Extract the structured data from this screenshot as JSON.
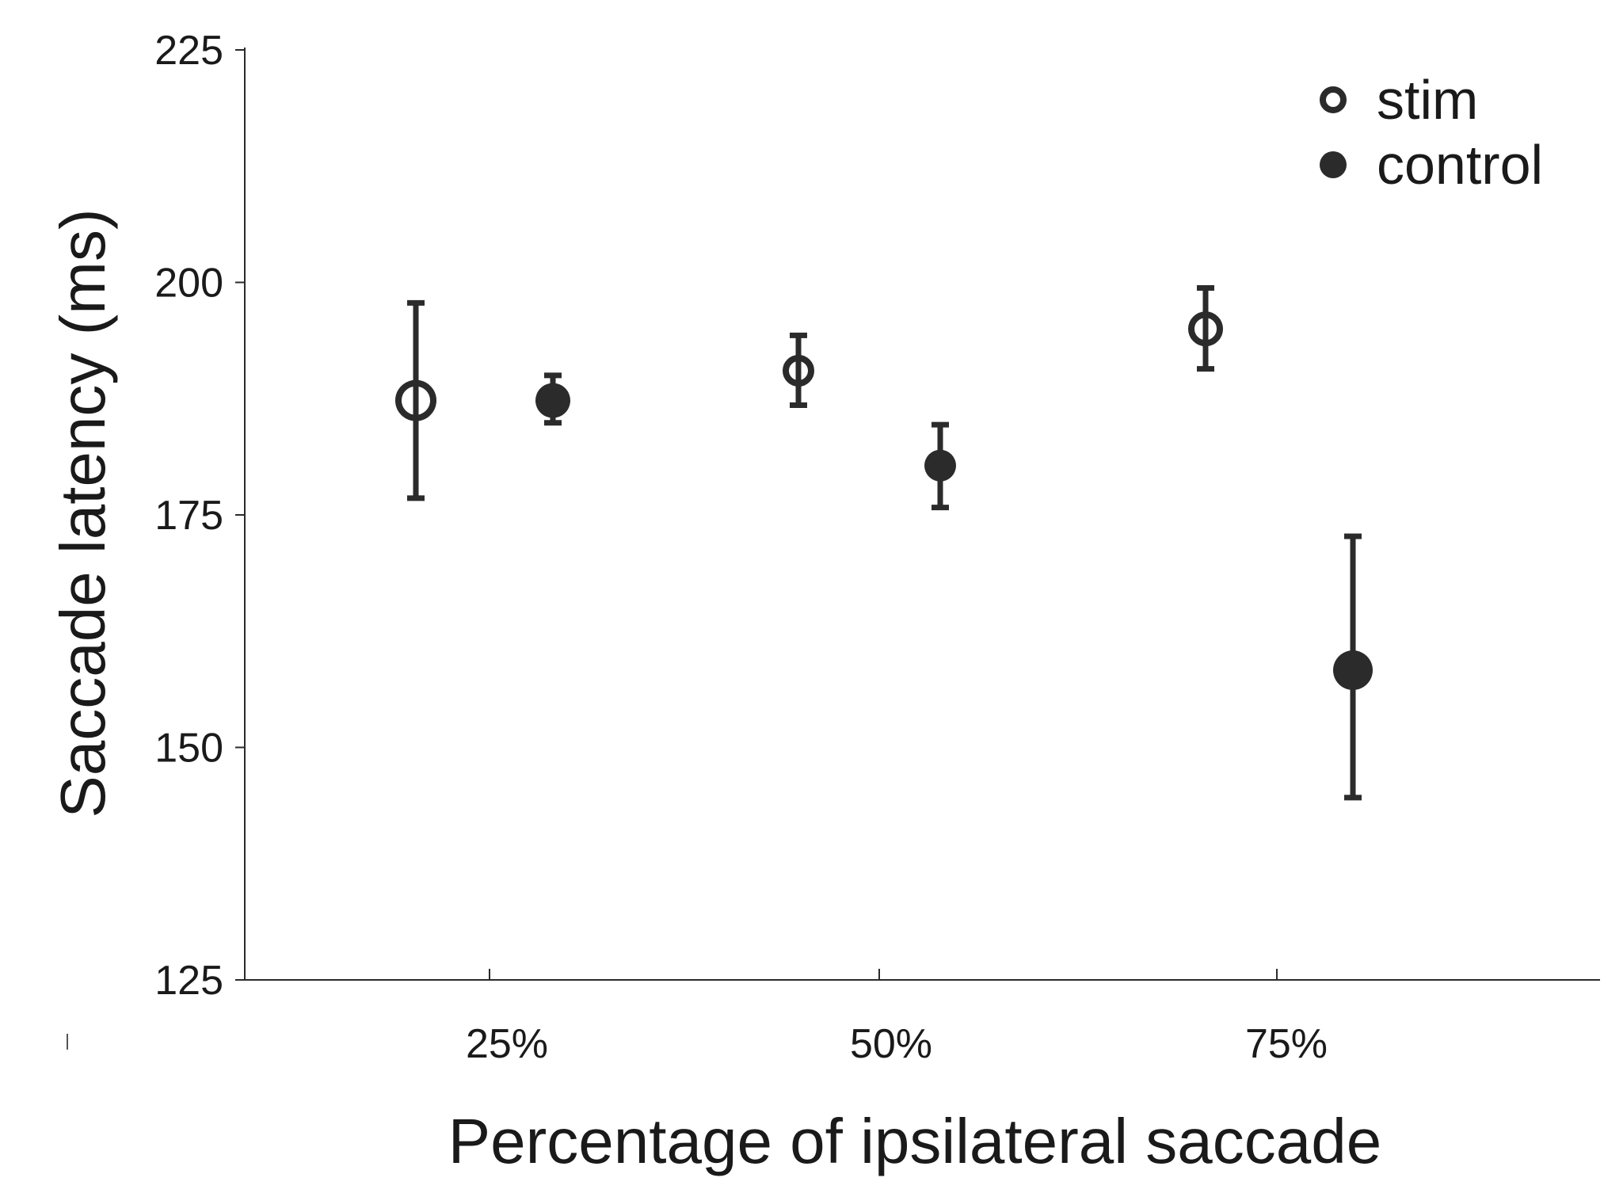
{
  "chart_data": {
    "type": "scatter",
    "title": "",
    "xlabel": "Percentage of ipsilateral saccade",
    "ylabel": "Saccade latency (ms)",
    "ylim": [
      125,
      225
    ],
    "yticks": [
      125,
      150,
      175,
      200,
      225
    ],
    "ytick_labels": [
      "125",
      "150",
      "175",
      "200",
      "225"
    ],
    "categories": [
      "25%",
      "50%",
      "75%"
    ],
    "grid": false,
    "legend_position": "top-right",
    "colors": {
      "ink": "#2b2b2b",
      "fill_open": "#ffffff"
    },
    "series": [
      {
        "name": "stim",
        "marker": "open-circle",
        "values": [
          187.3,
          190.5,
          195.0
        ],
        "err_low": [
          176.8,
          186.8,
          190.7
        ],
        "err_high": [
          197.8,
          194.3,
          199.4
        ]
      },
      {
        "name": "control",
        "marker": "filled-circle",
        "values": [
          187.3,
          180.3,
          158.3
        ],
        "err_low": [
          184.9,
          175.8,
          144.6
        ],
        "err_high": [
          190.0,
          184.7,
          172.7
        ]
      }
    ]
  }
}
